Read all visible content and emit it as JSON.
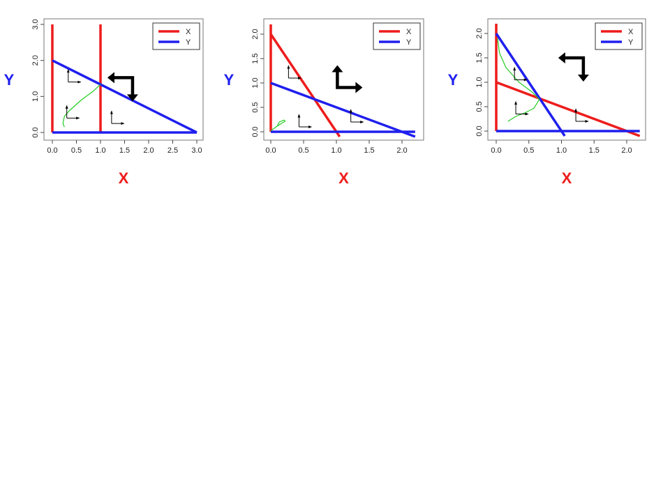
{
  "colors": {
    "x_nullcline": "#ee1c1c",
    "y_nullcline": "#1f1fee",
    "trajectory": "#22cc22",
    "arrow": "#000000",
    "x_label": "#ee1c1c",
    "y_label": "#1f1fee"
  },
  "chart_data": [
    {
      "type": "line",
      "title": "",
      "xlabel": "X",
      "ylabel": "Y",
      "xlim": [
        0,
        3
      ],
      "ylim": [
        0,
        3
      ],
      "x_ticks": [
        "0.0",
        "0.5",
        "1.0",
        "1.5",
        "2.0",
        "2.5",
        "3.0"
      ],
      "y_ticks": [
        "0.0",
        "1.0",
        "2.0",
        "3.0"
      ],
      "legend": {
        "placement": "top-right",
        "entries": [
          "X",
          "Y"
        ]
      },
      "grid": false,
      "series": [
        {
          "name": "X",
          "lines": [
            [
              [
                0,
                0
              ],
              [
                0,
                3
              ]
            ],
            [
              [
                1,
                0
              ],
              [
                1,
                3
              ]
            ]
          ]
        },
        {
          "name": "Y",
          "lines": [
            [
              [
                0,
                0
              ],
              [
                3,
                0
              ]
            ],
            [
              [
                0,
                2
              ],
              [
                3,
                0
              ]
            ]
          ]
        }
      ],
      "trajectory": [
        [
          0.25,
          0.15
        ],
        [
          0.22,
          0.25
        ],
        [
          0.25,
          0.45
        ],
        [
          0.35,
          0.6
        ],
        [
          0.6,
          0.9
        ],
        [
          0.85,
          1.15
        ],
        [
          1,
          1.333
        ]
      ],
      "small_arrows": [
        [
          0.33,
          1.4
        ],
        [
          0.3,
          0.4
        ],
        [
          1.23,
          0.25
        ]
      ],
      "big_arrow": {
        "point": [
          1.55,
          1.25
        ],
        "corner": "left-down"
      },
      "equilibrium": [
        1,
        1.333
      ]
    },
    {
      "type": "line",
      "title": "",
      "xlabel": "X",
      "ylabel": "Y",
      "xlim": [
        0,
        2.2
      ],
      "ylim": [
        0,
        2.2
      ],
      "x_ticks": [
        "0.0",
        "0.5",
        "1.0",
        "1.5",
        "2.0"
      ],
      "y_ticks": [
        "0.0",
        "0.5",
        "1.0",
        "1.5",
        "2.0"
      ],
      "legend": {
        "placement": "top-right",
        "entries": [
          "X",
          "Y"
        ]
      },
      "grid": false,
      "series": [
        {
          "name": "X",
          "lines": [
            [
              [
                0,
                0
              ],
              [
                0,
                2.2
              ]
            ],
            [
              [
                0,
                2
              ],
              [
                1.05,
                -0.1
              ]
            ]
          ]
        },
        {
          "name": "Y",
          "lines": [
            [
              [
                0,
                0
              ],
              [
                2.2,
                0
              ]
            ],
            [
              [
                0,
                1
              ],
              [
                2.2,
                -0.1
              ]
            ]
          ]
        }
      ],
      "trajectory": [
        [
          0,
          0.02
        ],
        [
          0.08,
          0.1
        ],
        [
          0.22,
          0.22
        ],
        [
          0.2,
          0.24
        ],
        [
          0.13,
          0.2
        ],
        [
          0.1,
          0.12
        ]
      ],
      "small_arrows": [
        [
          0.27,
          1.1
        ],
        [
          0.43,
          0.1
        ],
        [
          1.22,
          0.2
        ]
      ],
      "big_arrow": {
        "point": [
          1.1,
          1.05
        ],
        "corner": "up-right"
      },
      "equilibrium": [
        0.667,
        0.667
      ]
    },
    {
      "type": "line",
      "title": "",
      "xlabel": "X",
      "ylabel": "Y",
      "xlim": [
        0,
        2.2
      ],
      "ylim": [
        0,
        2.2
      ],
      "x_ticks": [
        "0.0",
        "0.5",
        "1.0",
        "1.5",
        "2.0"
      ],
      "y_ticks": [
        "0.0",
        "0.5",
        "1.0",
        "1.5",
        "2.0"
      ],
      "legend": {
        "placement": "top-right",
        "entries": [
          "X",
          "Y"
        ]
      },
      "grid": false,
      "series": [
        {
          "name": "X",
          "lines": [
            [
              [
                0,
                0
              ],
              [
                0,
                2.2
              ]
            ],
            [
              [
                0,
                1
              ],
              [
                2.2,
                -0.1
              ]
            ]
          ]
        },
        {
          "name": "Y",
          "lines": [
            [
              [
                0,
                0
              ],
              [
                2.2,
                0
              ]
            ],
            [
              [
                0,
                2
              ],
              [
                1.05,
                -0.1
              ]
            ]
          ]
        }
      ],
      "trajectory": [
        [
          0.18,
          0.2
        ],
        [
          0.3,
          0.3
        ],
        [
          0.45,
          0.38
        ],
        [
          0.58,
          0.47
        ],
        [
          0.66,
          0.65
        ],
        [
          0.55,
          0.8
        ],
        [
          0.35,
          1.0
        ],
        [
          0.15,
          1.3
        ],
        [
          0.05,
          1.6
        ],
        [
          0.02,
          1.9
        ]
      ],
      "small_arrows": [
        [
          0.28,
          1.05
        ],
        [
          0.3,
          0.35
        ],
        [
          1.22,
          0.2
        ]
      ],
      "big_arrow": {
        "point": [
          1.25,
          1.3
        ],
        "corner": "left-down"
      },
      "equilibrium": [
        0.667,
        0.667
      ]
    }
  ]
}
